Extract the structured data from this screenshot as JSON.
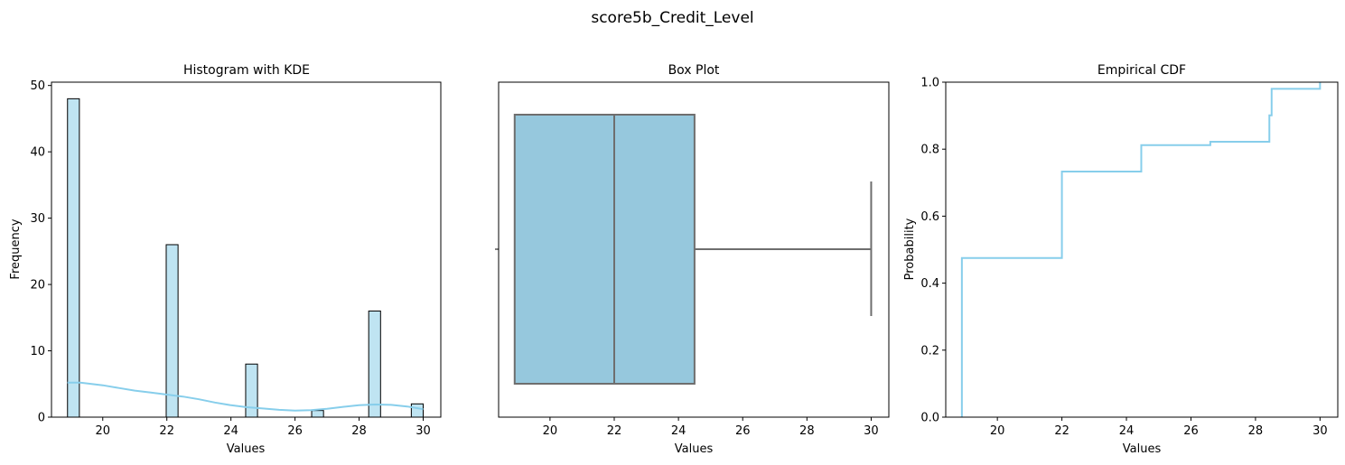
{
  "figure": {
    "suptitle": "score5b_Credit_Level"
  },
  "colors": {
    "primary": "#87CEEB",
    "hist_fill": "#BFE4F2",
    "box_fill": "#96C8DD",
    "box_line": "#6E6E6E",
    "axis": "#000000"
  },
  "chart_data": [
    {
      "type": "bar",
      "subtype": "histogram-with-kde",
      "title": "Histogram with KDE",
      "xlabel": "Values",
      "ylabel": "Frequency",
      "xlim": [
        18.4,
        30.55
      ],
      "ylim": [
        0,
        50.5
      ],
      "xticks": [
        20,
        22,
        24,
        26,
        28,
        30
      ],
      "yticks": [
        0,
        10,
        20,
        30,
        40,
        50
      ],
      "bins": [
        {
          "x0": 18.9,
          "x1": 19.27,
          "count": 48
        },
        {
          "x0": 21.98,
          "x1": 22.35,
          "count": 26
        },
        {
          "x0": 24.46,
          "x1": 24.83,
          "count": 8
        },
        {
          "x0": 26.52,
          "x1": 26.89,
          "count": 1
        },
        {
          "x0": 28.3,
          "x1": 28.67,
          "count": 16
        },
        {
          "x0": 29.63,
          "x1": 30.0,
          "count": 2
        }
      ],
      "kde": {
        "x": [
          18.9,
          19.3,
          20.0,
          20.5,
          21.0,
          21.5,
          22.0,
          22.5,
          23.0,
          23.5,
          24.0,
          24.5,
          25.0,
          25.5,
          26.0,
          26.5,
          27.0,
          27.5,
          28.0,
          28.5,
          29.0,
          29.5,
          30.0
        ],
        "y": [
          5.2,
          5.2,
          4.8,
          4.4,
          4.0,
          3.7,
          3.4,
          3.1,
          2.7,
          2.2,
          1.8,
          1.5,
          1.3,
          1.1,
          1.0,
          1.05,
          1.25,
          1.55,
          1.8,
          1.9,
          1.85,
          1.6,
          1.2
        ]
      }
    },
    {
      "type": "box",
      "title": "Box Plot",
      "xlabel": "Values",
      "xlim": [
        18.4,
        30.55
      ],
      "xticks": [
        20,
        22,
        24,
        26,
        28,
        30
      ],
      "stats": {
        "whislo": 18.9,
        "q1": 18.9,
        "med": 22.0,
        "q3": 24.5,
        "whishi": 30.0
      }
    },
    {
      "type": "line",
      "subtype": "ecdf-step",
      "title": "Empirical CDF",
      "xlabel": "Values",
      "ylabel": "Probability",
      "xlim": [
        18.4,
        30.55
      ],
      "ylim": [
        0,
        1
      ],
      "xticks": [
        20,
        22,
        24,
        26,
        28,
        30
      ],
      "yticks": [
        0.0,
        0.2,
        0.4,
        0.6,
        0.8,
        1.0
      ],
      "ytick_labels": [
        "0.0",
        "0.2",
        "0.4",
        "0.6",
        "0.8",
        "1.0"
      ],
      "steps": [
        {
          "x": 18.9,
          "y": 0.475
        },
        {
          "x": 22.0,
          "y": 0.733
        },
        {
          "x": 24.46,
          "y": 0.812
        },
        {
          "x": 26.6,
          "y": 0.822
        },
        {
          "x": 28.43,
          "y": 0.901
        },
        {
          "x": 28.5,
          "y": 0.98
        },
        {
          "x": 30.0,
          "y": 1.0
        }
      ]
    }
  ]
}
